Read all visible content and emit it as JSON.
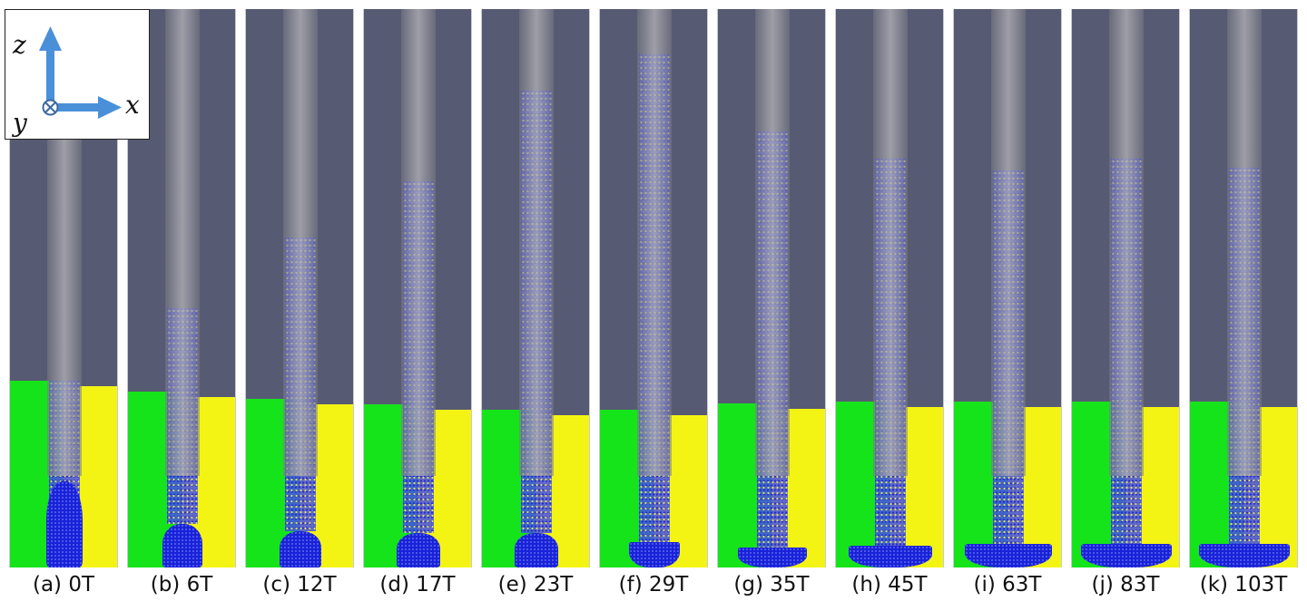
{
  "figure": {
    "panels": [
      {
        "caption": "(a) 0T"
      },
      {
        "caption": "(b) 6T"
      },
      {
        "caption": "(c) 12T"
      },
      {
        "caption": "(d) 17T"
      },
      {
        "caption": "(e) 23T"
      },
      {
        "caption": "(f) 29T"
      },
      {
        "caption": "(g) 35T"
      },
      {
        "caption": "(h) 45T"
      },
      {
        "caption": "(i) 63T"
      },
      {
        "caption": "(j) 83T"
      },
      {
        "caption": "(k) 103T"
      }
    ],
    "axes_legend": {
      "z": "z",
      "x": "x",
      "y": "y",
      "y_symbol": "⊗"
    },
    "colors": {
      "background": "#565a72",
      "green_particles": "#16e41a",
      "yellow_particles": "#f4f414",
      "blue_particles": "#2a30e0",
      "tube": "#a0a0a8",
      "axis_arrow": "#4a90d9"
    }
  }
}
